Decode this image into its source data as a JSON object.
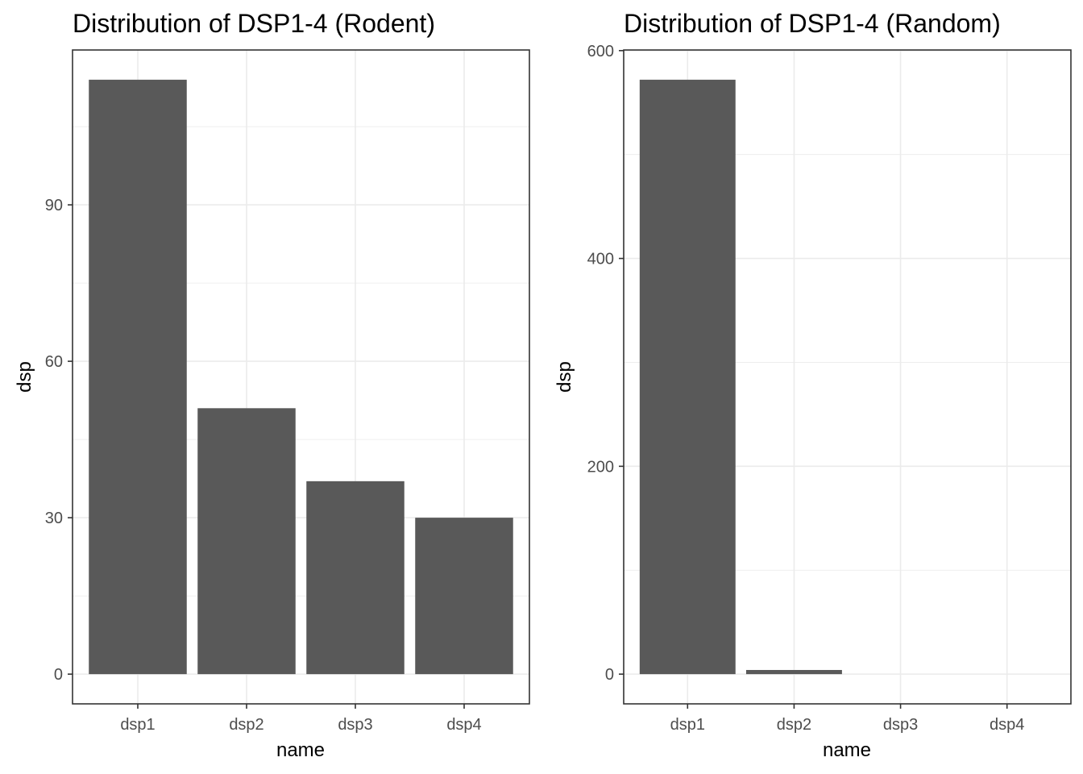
{
  "chart_data": [
    {
      "type": "bar",
      "title": "Distribution of DSP1-4 (Rodent)",
      "xlabel": "name",
      "ylabel": "dsp",
      "categories": [
        "dsp1",
        "dsp2",
        "dsp3",
        "dsp4"
      ],
      "values": [
        114,
        51,
        37,
        30
      ],
      "ylim": [
        -5.7,
        119.7
      ],
      "y_ticks": [
        0,
        30,
        60,
        90
      ],
      "y_tick_labels": [
        "0",
        "30",
        "60",
        "90"
      ],
      "grid": true,
      "bar_color": "#595959"
    },
    {
      "type": "bar",
      "title": "Distribution of DSP1-4 (Random)",
      "xlabel": "name",
      "ylabel": "dsp",
      "categories": [
        "dsp1",
        "dsp2",
        "dsp3",
        "dsp4"
      ],
      "values": [
        572,
        4,
        0,
        0
      ],
      "ylim": [
        -28.6,
        600.6
      ],
      "y_ticks": [
        0,
        200,
        400,
        600
      ],
      "y_tick_labels": [
        "0",
        "200",
        "400",
        "600"
      ],
      "grid": true,
      "bar_color": "#595959"
    }
  ]
}
